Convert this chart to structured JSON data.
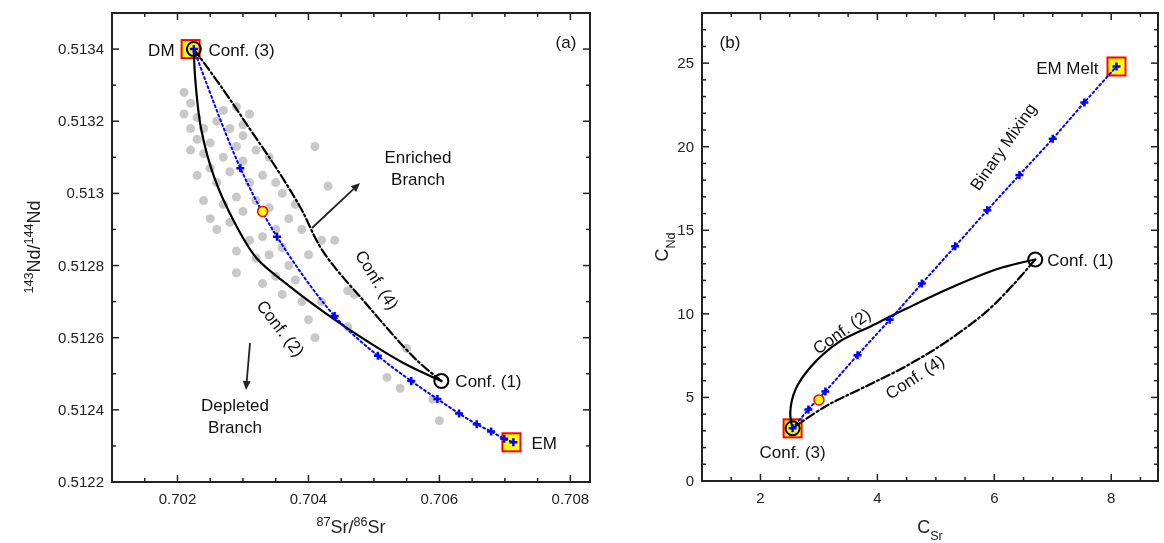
{
  "chart_data": [
    {
      "type": "scatter",
      "xlabel": "$^{87}$Sr/$^{86}$Sr",
      "ylabel": "$^{143}$Nd/$^{144}$Nd",
      "xlim": [
        0.701,
        0.7083
      ],
      "ylim": [
        0.5122,
        0.5135
      ],
      "xticks": [
        {
          "value": 0.7015,
          "label": null
        },
        0.702,
        {
          "value": 0.7025,
          "label": null
        },
        {
          "value": 0.703,
          "label": null
        },
        {
          "value": 0.7035,
          "label": null
        },
        0.704,
        {
          "value": 0.7045,
          "label": null
        },
        {
          "value": 0.705,
          "label": null
        },
        {
          "value": 0.7055,
          "label": null
        },
        0.706,
        {
          "value": 0.7065,
          "label": null
        },
        {
          "value": 0.707,
          "label": null
        },
        {
          "value": 0.7075,
          "label": null
        },
        0.708
      ],
      "yticks": [
        0.5122,
        {
          "value": 0.5123,
          "label": null
        },
        0.5124,
        {
          "value": 0.5125,
          "label": null
        },
        0.5126,
        {
          "value": 0.5127,
          "label": null
        },
        0.5128,
        {
          "value": 0.5129,
          "label": null
        },
        0.513,
        {
          "value": 0.5131,
          "label": null
        },
        0.5132,
        {
          "value": 0.5133,
          "label": null
        },
        0.5134,
        {
          "value": 0.5135,
          "label": null
        }
      ],
      "series": [
        {
          "marker": "circle",
          "color": "#c8c8c8",
          "x": [
            0.7021,
            0.7022,
            0.7021,
            0.7022,
            0.7023,
            0.7023,
            0.7024,
            0.7022,
            0.7024,
            0.7025,
            0.7026,
            0.7027,
            0.7028,
            0.7025,
            0.7026,
            0.7027,
            0.7028,
            0.7029,
            0.703,
            0.7031,
            0.703,
            0.7031,
            0.7029,
            0.7027,
            0.7028,
            0.703,
            0.7032,
            0.7033,
            0.7034,
            0.7035,
            0.7036,
            0.7034,
            0.7035,
            0.7033,
            0.7031,
            0.7029,
            0.7032,
            0.7034,
            0.7036,
            0.7037,
            0.7038,
            0.7039,
            0.7037,
            0.7035,
            0.7033,
            0.7036,
            0.7038,
            0.704,
            0.7039,
            0.7026,
            0.7024,
            0.7023,
            0.7025,
            0.7032,
            0.7029,
            0.703,
            0.7041,
            0.7043,
            0.7042,
            0.7044,
            0.7046,
            0.7047,
            0.7055,
            0.7052,
            0.7054,
            0.7059,
            0.706,
            0.7041,
            0.7029,
            0.7042,
            0.704,
            0.7046
          ],
          "values": [
            0.51328,
            0.51325,
            0.51322,
            0.51318,
            0.51321,
            0.51315,
            0.51318,
            0.51312,
            0.51311,
            0.51314,
            0.5132,
            0.51323,
            0.51318,
            0.51307,
            0.51303,
            0.5131,
            0.51306,
            0.51313,
            0.51319,
            0.51322,
            0.51309,
            0.51303,
            0.51299,
            0.51297,
            0.51292,
            0.51295,
            0.51298,
            0.51305,
            0.5131,
            0.51303,
            0.513,
            0.51296,
            0.5129,
            0.51288,
            0.51287,
            0.51284,
            0.51282,
            0.51283,
            0.51285,
            0.51293,
            0.51297,
            0.5129,
            0.5128,
            0.51277,
            0.51275,
            0.51272,
            0.51276,
            0.51283,
            0.5127,
            0.5129,
            0.51298,
            0.51305,
            0.51293,
            0.51312,
            0.51324,
            0.51316,
            0.51313,
            0.51302,
            0.51287,
            0.51287,
            0.51273,
            0.51272,
            0.51257,
            0.51249,
            0.51246,
            0.51243,
            0.51237,
            0.5126,
            0.51278,
            0.5127,
            0.51265,
            0.51263
          ]
        },
        {
          "marker": "square",
          "color": "#ffff00",
          "x": [
            0.7022,
            0.7071
          ],
          "values": [
            0.5134,
            0.51231
          ]
        },
        {
          "type": "line",
          "name": "Conf. (2)",
          "line_style": "solid",
          "color": "#000000",
          "x": [
            0.70225,
            0.70227,
            0.70236,
            0.70257,
            0.70287,
            0.70321,
            0.70366,
            0.7044,
            0.7049,
            0.70545,
            0.70603
          ],
          "values": [
            0.5134,
            0.51332,
            0.51318,
            0.51304,
            0.51292,
            0.51282,
            0.51275,
            0.51265,
            0.51259,
            0.51253,
            0.51248
          ]
        },
        {
          "type": "line",
          "name": "Conf. (4)",
          "line_style": "dashed",
          "color": "#000000",
          "x": [
            0.70225,
            0.70269,
            0.7031,
            0.70351,
            0.70388,
            0.70422,
            0.7049,
            0.70564,
            0.70603
          ],
          "values": [
            0.5134,
            0.51329,
            0.51318,
            0.51307,
            0.51296,
            0.51284,
            0.51269,
            0.51254,
            0.51248
          ]
        },
        {
          "type": "line",
          "line_style": "dotted",
          "marker": "cross",
          "color": "#0000ff",
          "x": [
            0.70225,
            0.70296,
            0.70352,
            0.7044,
            0.70506,
            0.70557,
            0.70597,
            0.7063,
            0.70657,
            0.70679,
            0.70699,
            0.70713
          ],
          "values": [
            0.5134,
            0.51307,
            0.51288,
            0.51266,
            0.51255,
            0.51248,
            0.51243,
            0.51239,
            0.51236,
            0.51234,
            0.51232,
            0.51231
          ]
        },
        {
          "marker": "circle",
          "color": null,
          "x": [
            0.70225,
            0.70603
          ],
          "values": [
            0.5134,
            0.51248
          ]
        },
        {
          "marker": "circle",
          "color": "#ffff00",
          "x": [
            0.7033
          ],
          "values": [
            0.51295
          ]
        }
      ],
      "annotations": [
        "(a)",
        {
          "text": "DM",
          "x": 0.7022,
          "y": 0.5134
        },
        {
          "text": "Conf. (3)",
          "x": 0.7022,
          "y": 0.5134
        },
        {
          "text": "Conf. (1)",
          "x": 0.70603,
          "y": 0.51248
        },
        {
          "text": "EM",
          "x": 0.7071,
          "y": 0.51231
        },
        "Enriched Branch",
        "Depleted Branch"
      ]
    },
    {
      "type": "scatter",
      "xlabel": "C$_{Sr}$",
      "ylabel": "C$_{Nd}$",
      "xlim": [
        1,
        8.8
      ],
      "ylim": [
        0,
        28
      ],
      "xticks": [
        {
          "value": 1.5,
          "label": null
        },
        2,
        {
          "value": 2.5,
          "label": null
        },
        {
          "value": 3,
          "label": null
        },
        {
          "value": 3.5,
          "label": null
        },
        4,
        {
          "value": 4.5,
          "label": null
        },
        {
          "value": 5,
          "label": null
        },
        {
          "value": 5.5,
          "label": null
        },
        6,
        {
          "value": 6.5,
          "label": null
        },
        {
          "value": 7,
          "label": null
        },
        {
          "value": 7.5,
          "label": null
        },
        8,
        {
          "value": 8.5,
          "label": null
        }
      ],
      "yticks": [
        0,
        {
          "value": 1,
          "label": null
        },
        {
          "value": 2,
          "label": null
        },
        {
          "value": 3,
          "label": null
        },
        {
          "value": 4,
          "label": null
        },
        5,
        {
          "value": 6,
          "label": null
        },
        {
          "value": 7,
          "label": null
        },
        {
          "value": 8,
          "label": null
        },
        {
          "value": 9,
          "label": null
        },
        10,
        {
          "value": 11,
          "label": null
        },
        {
          "value": 12,
          "label": null
        },
        {
          "value": 13,
          "label": null
        },
        {
          "value": 14,
          "label": null
        },
        15,
        {
          "value": 16,
          "label": null
        },
        {
          "value": 17,
          "label": null
        },
        {
          "value": 18,
          "label": null
        },
        {
          "value": 19,
          "label": null
        },
        20,
        {
          "value": 21,
          "label": null
        },
        {
          "value": 22,
          "label": null
        },
        {
          "value": 23,
          "label": null
        },
        {
          "value": 24,
          "label": null
        },
        25,
        {
          "value": 26,
          "label": null
        },
        {
          "value": 27,
          "label": null
        },
        {
          "value": 28,
          "label": null
        }
      ],
      "series": [
        {
          "marker": "square",
          "color": "#ffff00",
          "x": [
            2.55,
            8.09
          ],
          "values": [
            3.15,
            24.8
          ]
        },
        {
          "type": "line",
          "name": "Conf. (2)",
          "line_style": "solid",
          "color": "#000000",
          "x": [
            2.55,
            2.51,
            2.6,
            2.87,
            3.34,
            3.9,
            4.49,
            5.34,
            6.08,
            6.7
          ],
          "values": [
            3.15,
            4.1,
            5.48,
            6.87,
            8.31,
            9.28,
            10.3,
            11.69,
            12.71,
            13.25
          ]
        },
        {
          "type": "line",
          "name": "Conf. (4)",
          "line_style": "dashed",
          "color": "#000000",
          "x": [
            2.55,
            3.11,
            3.8,
            4.49,
            5.17,
            5.86,
            6.31,
            6.7
          ],
          "values": [
            3.15,
            4.46,
            5.66,
            6.87,
            8.31,
            10.12,
            11.69,
            13.25
          ]
        },
        {
          "type": "line",
          "name": "Binary Mixing",
          "line_style": "dotted",
          "marker": "cross",
          "color": "#0000ff",
          "x": [
            2.55,
            2.82,
            3.11,
            3.66,
            4.21,
            4.76,
            5.33,
            5.88,
            6.43,
            7.0,
            7.54,
            8.09
          ],
          "values": [
            3.15,
            4.28,
            5.36,
            7.53,
            9.64,
            11.81,
            14.04,
            16.2,
            18.31,
            20.48,
            22.65,
            24.8
          ]
        },
        {
          "marker": "circle",
          "color": null,
          "x": [
            2.55,
            6.7
          ],
          "values": [
            3.15,
            13.25
          ]
        },
        {
          "marker": "circle",
          "color": "#ffff00",
          "x": [
            3.0
          ],
          "values": [
            4.85
          ]
        }
      ],
      "annotations": [
        "(b)",
        {
          "text": "EM Melt",
          "x": 8.09,
          "y": 24.8
        },
        {
          "text": "Conf. (1)",
          "x": 6.7,
          "y": 13.25
        },
        {
          "text": "Conf. (3)",
          "x": 2.55,
          "y": 3.15
        }
      ]
    }
  ]
}
